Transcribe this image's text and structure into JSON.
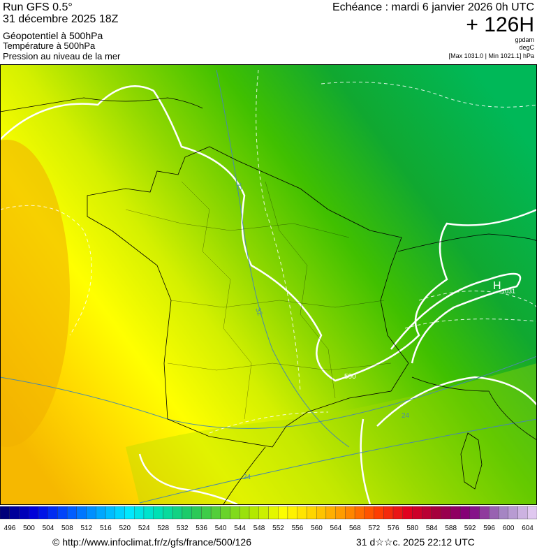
{
  "header": {
    "run": "Run GFS 0.5°",
    "date": "31 décembre 2025 18Z",
    "field1": "Géopotentiel à 500hPa",
    "field2": "Température à 500hPa",
    "field3": "Pression au niveau de la mer",
    "echeance": "Echéance : mardi 6 janvier 2026 0h UTC",
    "lead": "+ 126H",
    "unit1": "gpdam",
    "unit2": "degC",
    "range": "[Max 1031.0 | Min 1021.1] hPa"
  },
  "map": {
    "high": "H",
    "high_value": "1031",
    "contour_labels": [
      "32",
      "24",
      "24",
      "32",
      "500"
    ]
  },
  "colorbar": {
    "labels": [
      496,
      500,
      504,
      508,
      512,
      516,
      520,
      524,
      528,
      532,
      536,
      540,
      544,
      548,
      552,
      556,
      560,
      564,
      568,
      572,
      576,
      580,
      584,
      588,
      592,
      596,
      600,
      604
    ],
    "colors": [
      "#00007a",
      "#0000e0",
      "#0050ff",
      "#00a0ff",
      "#00e8ff",
      "#00e0b0",
      "#20c860",
      "#60d030",
      "#b0e800",
      "#ffff00",
      "#ffd000",
      "#ff9000",
      "#ff4000",
      "#e00020",
      "#a00040",
      "#800080",
      "#a080c0",
      "#e0c8f0"
    ]
  },
  "footer": {
    "url": "© http://www.infoclimat.fr/z/gfs/france/500/126",
    "stamp": "31 d☆☆c. 2025 22:12 UTC"
  }
}
